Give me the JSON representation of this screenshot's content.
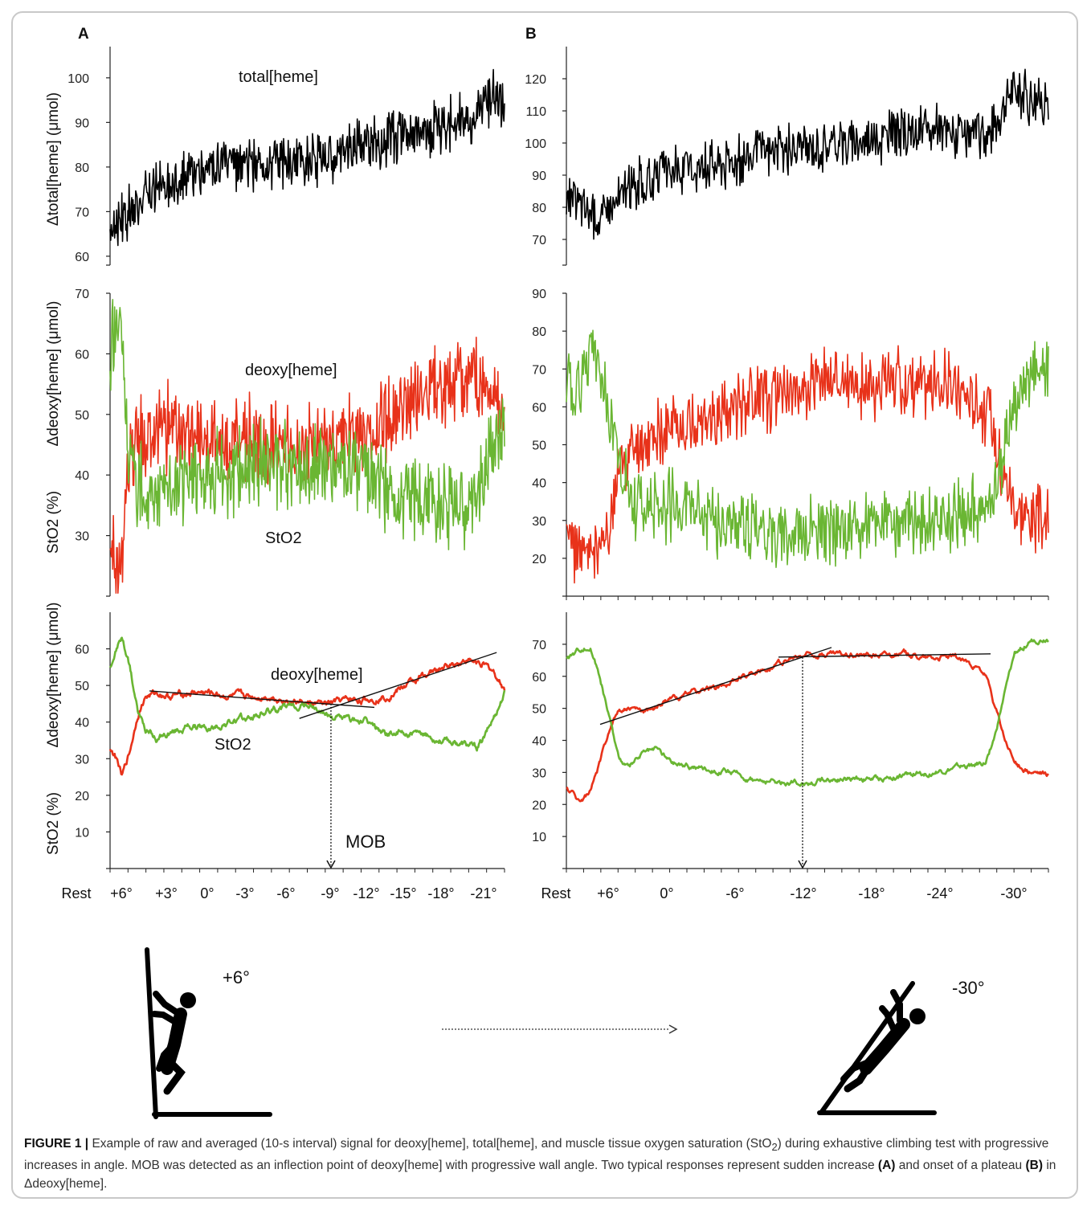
{
  "panels": {
    "a": "A",
    "b": "B"
  },
  "colors": {
    "total": "#000000",
    "deoxy": "#e8321a",
    "sto2": "#6ab633",
    "axis": "#222222",
    "fit": "#111111"
  },
  "chart_data": [
    {
      "id": "A-total",
      "type": "line",
      "ylabel": "Δtotal[heme] (μmol)",
      "yticks": [
        60,
        70,
        80,
        90,
        100
      ],
      "ylim": [
        58,
        107
      ],
      "x_range": [
        0,
        100
      ],
      "series": [
        {
          "name": "total[heme]",
          "color": "#000000",
          "x": [
            0,
            5,
            10,
            15,
            20,
            25,
            30,
            35,
            40,
            45,
            50,
            55,
            60,
            65,
            70,
            75,
            80,
            85,
            90,
            93,
            95,
            100
          ],
          "values": [
            67,
            70,
            73,
            77,
            78,
            79,
            80,
            80,
            81,
            81,
            82,
            82,
            84,
            85,
            86,
            87,
            88,
            89,
            90,
            92,
            96,
            94
          ]
        }
      ],
      "noise": 6
    },
    {
      "id": "A-raw",
      "type": "line",
      "ylabel": "Δdeoxy[heme] (μmol)",
      "ylabel2": "StO2 (%)",
      "yticks": [
        30,
        40,
        50,
        60,
        70
      ],
      "ylim": [
        20,
        70
      ],
      "x_range": [
        0,
        100
      ],
      "series": [
        {
          "name": "deoxy[heme]",
          "color": "#e8321a",
          "x": [
            0,
            1,
            2,
            3,
            4,
            5,
            6,
            8,
            10,
            15,
            20,
            25,
            30,
            35,
            40,
            45,
            50,
            55,
            60,
            65,
            70,
            75,
            80,
            85,
            90,
            93,
            95,
            98,
            100
          ],
          "values": [
            30,
            27,
            23,
            25,
            35,
            42,
            45,
            46,
            47,
            48,
            47,
            47,
            46,
            46,
            45,
            45,
            45,
            45,
            46,
            46,
            49,
            52,
            54,
            55,
            56,
            57,
            56,
            53,
            49
          ]
        },
        {
          "name": "StO2",
          "color": "#6ab633",
          "x": [
            0,
            1,
            2,
            3,
            4,
            5,
            6,
            8,
            10,
            15,
            20,
            25,
            30,
            35,
            40,
            45,
            50,
            55,
            60,
            65,
            70,
            75,
            80,
            85,
            90,
            93,
            95,
            97,
            100
          ],
          "values": [
            57,
            63,
            66,
            62,
            50,
            43,
            40,
            38,
            37,
            38,
            39,
            40,
            41,
            42,
            42,
            42,
            42,
            41,
            40,
            40,
            37,
            36,
            36,
            35,
            35,
            36,
            40,
            44,
            49
          ]
        }
      ],
      "noise": 7
    },
    {
      "id": "A-avg",
      "type": "line",
      "ylabel": "Δdeoxy[heme] (μmol)",
      "ylabel2": "StO2 (%)",
      "yticks": [
        10,
        20,
        30,
        40,
        50,
        60
      ],
      "ylim": [
        0,
        70
      ],
      "x_range": [
        0,
        100
      ],
      "x_tick_labels": [
        "Rest",
        "+6°",
        "+3°",
        "0°",
        "-3°",
        "-6°",
        "-9°",
        "-12°",
        "-15°",
        "-18°",
        "-21°"
      ],
      "series": [
        {
          "name": "deoxy[heme]",
          "color": "#e8321a",
          "x": [
            0,
            2,
            3,
            5,
            7,
            9,
            12,
            15,
            20,
            25,
            30,
            35,
            40,
            45,
            50,
            55,
            60,
            65,
            70,
            75,
            80,
            85,
            90,
            94,
            97,
            100
          ],
          "values": [
            33,
            29,
            25,
            32,
            42,
            47,
            48,
            47,
            48,
            48,
            47,
            47,
            47,
            46,
            45,
            45,
            46,
            46,
            47,
            50,
            53,
            55,
            57,
            56,
            54,
            49
          ]
        },
        {
          "name": "StO2",
          "color": "#6ab633",
          "x": [
            0,
            2,
            3,
            5,
            7,
            9,
            12,
            15,
            20,
            25,
            30,
            35,
            40,
            45,
            50,
            55,
            60,
            65,
            70,
            75,
            80,
            85,
            90,
            93,
            95,
            98,
            100
          ],
          "values": [
            55,
            61,
            63,
            55,
            43,
            38,
            35,
            37,
            39,
            38,
            40,
            41,
            43,
            44,
            45,
            42,
            41,
            40,
            37,
            37,
            36,
            35,
            34,
            33,
            36,
            43,
            48
          ]
        }
      ],
      "fit_lines": [
        [
          [
            10,
            48.5
          ],
          [
            67,
            44
          ]
        ],
        [
          [
            48,
            41
          ],
          [
            98,
            59
          ]
        ]
      ],
      "mob_x": 56
    },
    {
      "id": "B-total",
      "type": "line",
      "yticks": [
        70,
        80,
        90,
        100,
        110,
        120
      ],
      "ylim": [
        62,
        130
      ],
      "x_range": [
        0,
        100
      ],
      "series": [
        {
          "name": "total[heme]",
          "color": "#000000",
          "x": [
            0,
            3,
            5,
            7,
            9,
            12,
            15,
            20,
            25,
            30,
            35,
            40,
            45,
            50,
            55,
            60,
            65,
            70,
            75,
            80,
            85,
            88,
            90,
            92,
            94,
            96,
            100
          ],
          "values": [
            82,
            81,
            79,
            76,
            80,
            84,
            87,
            90,
            92,
            94,
            95,
            97,
            98,
            99,
            100,
            101,
            102,
            103,
            104,
            103,
            103,
            103,
            110,
            116,
            116,
            114,
            114
          ]
        }
      ],
      "noise": 8
    },
    {
      "id": "B-raw",
      "type": "line",
      "yticks": [
        20,
        30,
        40,
        50,
        60,
        70,
        80,
        90
      ],
      "ylim": [
        10,
        90
      ],
      "x_range": [
        0,
        100
      ],
      "series": [
        {
          "name": "deoxy[heme]",
          "color": "#e8321a",
          "x": [
            0,
            3,
            5,
            7,
            9,
            11,
            14,
            18,
            22,
            26,
            30,
            35,
            40,
            45,
            50,
            55,
            60,
            65,
            70,
            75,
            80,
            85,
            88,
            90,
            93,
            96,
            100
          ],
          "values": [
            25,
            23,
            18,
            22,
            30,
            42,
            48,
            52,
            54,
            56,
            58,
            60,
            62,
            64,
            65,
            66,
            66,
            66,
            66,
            66,
            65,
            62,
            57,
            45,
            34,
            31,
            29
          ]
        },
        {
          "name": "StO2",
          "color": "#6ab633",
          "x": [
            0,
            3,
            5,
            7,
            9,
            11,
            14,
            18,
            22,
            26,
            30,
            35,
            40,
            45,
            50,
            55,
            60,
            65,
            70,
            75,
            80,
            85,
            88,
            90,
            93,
            96,
            100
          ],
          "values": [
            65,
            66,
            73,
            70,
            56,
            45,
            35,
            33,
            34,
            32,
            30,
            29,
            28,
            27,
            27,
            27,
            28,
            29,
            29,
            30,
            31,
            32,
            33,
            45,
            62,
            70,
            71
          ]
        }
      ],
      "noise": 9
    },
    {
      "id": "B-avg",
      "type": "line",
      "yticks": [
        10,
        20,
        30,
        40,
        50,
        60,
        70
      ],
      "ylim": [
        0,
        80
      ],
      "x_range": [
        0,
        100
      ],
      "x_tick_labels": [
        "Rest",
        "+6°",
        "0°",
        "-6°",
        "-12°",
        "-18°",
        "-24°",
        "-30°"
      ],
      "series": [
        {
          "name": "deoxy[heme]",
          "color": "#e8321a",
          "x": [
            0,
            3,
            5,
            7,
            9,
            11,
            13,
            16,
            19,
            22,
            26,
            30,
            34,
            38,
            42,
            46,
            50,
            55,
            60,
            65,
            70,
            75,
            80,
            84,
            87,
            89,
            91,
            93,
            96,
            100
          ],
          "values": [
            25,
            21,
            24,
            33,
            44,
            50,
            50,
            49,
            51,
            53,
            55,
            56,
            58,
            61,
            63,
            65,
            67,
            67,
            67,
            67,
            67,
            66,
            66,
            64,
            60,
            50,
            40,
            33,
            30,
            29
          ]
        },
        {
          "name": "StO2",
          "color": "#6ab633",
          "x": [
            0,
            3,
            5,
            7,
            9,
            11,
            13,
            16,
            19,
            22,
            26,
            30,
            34,
            38,
            42,
            46,
            50,
            55,
            60,
            65,
            70,
            75,
            80,
            84,
            87,
            89,
            91,
            93,
            96,
            100
          ],
          "values": [
            65,
            69,
            69,
            60,
            46,
            34,
            31,
            36,
            37,
            33,
            32,
            31,
            30,
            28,
            27,
            27,
            27,
            28,
            28,
            28,
            29,
            30,
            31,
            32,
            33,
            42,
            55,
            67,
            71,
            72
          ]
        }
      ],
      "fit_lines": [
        [
          [
            7,
            45
          ],
          [
            55,
            69
          ]
        ],
        [
          [
            44,
            66
          ],
          [
            88,
            67
          ]
        ]
      ],
      "mob_x": 49
    }
  ],
  "labels": {
    "total_heme": "total[heme]",
    "deoxy_heme_raw": "deoxy[heme]",
    "sto2_raw": "StO2",
    "deoxy_heme_avg": "deoxy[heme]",
    "sto2_avg": "StO2",
    "mob": "MOB",
    "ylabel_total": "Δtotal[heme] (μmol)",
    "ylabel_deoxy": "Δdeoxy[heme] (μmol)",
    "ylabel_sto2": "StO2 (%)"
  },
  "climber_a_angle": "+6°",
  "climber_b_angle": "-30°",
  "caption": {
    "label": "FIGURE 1 |",
    "p1": " Example of raw and averaged (10-s interval) signal for deoxy[heme], total[heme], and muscle tissue oxygen saturation (StO",
    "sub": "2",
    "p2": ") during exhaustive climbing test with progressive increases in angle. MOB was detected as an inflection point of deoxy[heme] with progressive wall angle. Two typical responses represent sudden increase ",
    "bold_a": "(A)",
    "p3": " and onset of a plateau ",
    "bold_b": "(B)",
    "p4": " in Δdeoxy[heme]."
  }
}
